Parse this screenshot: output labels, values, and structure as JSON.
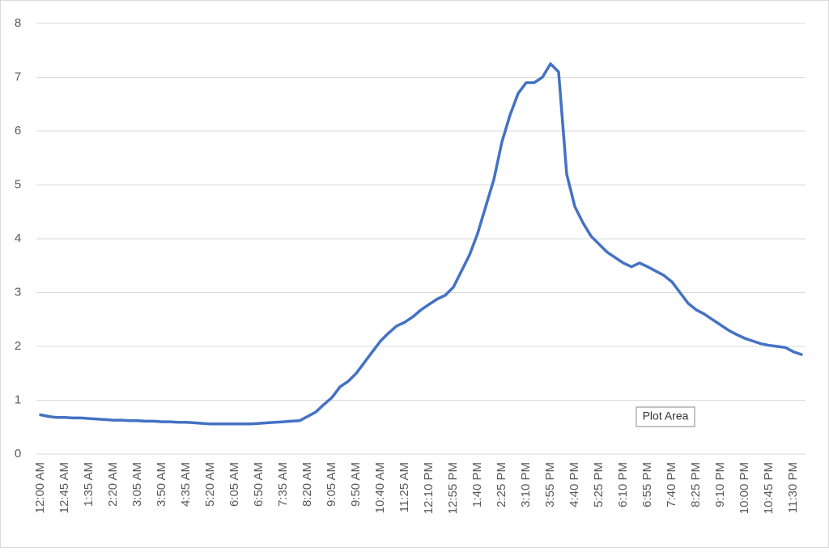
{
  "chart_data": {
    "type": "line",
    "categories": [
      "12:00 AM",
      null,
      null,
      "12:45 AM",
      null,
      null,
      "1:35 AM",
      null,
      null,
      "2:20 AM",
      null,
      null,
      "3:05 AM",
      null,
      null,
      "3:50 AM",
      null,
      null,
      "4:35 AM",
      null,
      null,
      "5:20 AM",
      null,
      null,
      "6:05 AM",
      null,
      null,
      "6:50 AM",
      null,
      null,
      "7:35 AM",
      null,
      null,
      "8:20 AM",
      null,
      null,
      "9:05 AM",
      null,
      null,
      "9:50 AM",
      null,
      null,
      "10:40 AM",
      null,
      null,
      "11:25 AM",
      null,
      null,
      "12:10 PM",
      null,
      null,
      "12:55 PM",
      null,
      null,
      "1:40 PM",
      null,
      null,
      "2:25 PM",
      null,
      null,
      "3:10 PM",
      null,
      null,
      "3:55 PM",
      null,
      null,
      "4:40 PM",
      null,
      null,
      "5:25 PM",
      null,
      null,
      "6:10 PM",
      null,
      null,
      "6:55 PM",
      null,
      null,
      "7:40 PM",
      null,
      null,
      "8:25 PM",
      null,
      null,
      "9:10 PM",
      null,
      null,
      "10:00 PM",
      null,
      null,
      "10:45 PM",
      null,
      null,
      "11:30 PM",
      null
    ],
    "values": [
      0.73,
      0.7,
      0.68,
      0.68,
      0.67,
      0.67,
      0.66,
      0.65,
      0.64,
      0.63,
      0.63,
      0.62,
      0.62,
      0.61,
      0.61,
      0.6,
      0.6,
      0.59,
      0.59,
      0.58,
      0.57,
      0.56,
      0.56,
      0.56,
      0.56,
      0.56,
      0.56,
      0.57,
      0.58,
      0.59,
      0.6,
      0.61,
      0.62,
      0.7,
      0.78,
      0.92,
      1.05,
      1.25,
      1.35,
      1.5,
      1.7,
      1.9,
      2.1,
      2.25,
      2.38,
      2.45,
      2.55,
      2.68,
      2.78,
      2.88,
      2.95,
      3.1,
      3.4,
      3.7,
      4.1,
      4.6,
      5.1,
      5.8,
      6.3,
      6.7,
      6.9,
      6.9,
      7.0,
      7.25,
      7.1,
      5.2,
      4.6,
      4.3,
      4.05,
      3.9,
      3.75,
      3.65,
      3.55,
      3.48,
      3.55,
      3.48,
      3.4,
      3.32,
      3.2,
      3.0,
      2.8,
      2.68,
      2.6,
      2.5,
      2.4,
      2.3,
      2.22,
      2.15,
      2.1,
      2.05,
      2.02,
      2.0,
      1.98,
      1.9,
      1.85
    ],
    "color": "#4472c4",
    "ylim": [
      0,
      8
    ],
    "yticks": [
      0,
      1,
      2,
      3,
      4,
      5,
      6,
      7,
      8
    ],
    "grid": true,
    "tooltip": "Plot Area"
  }
}
